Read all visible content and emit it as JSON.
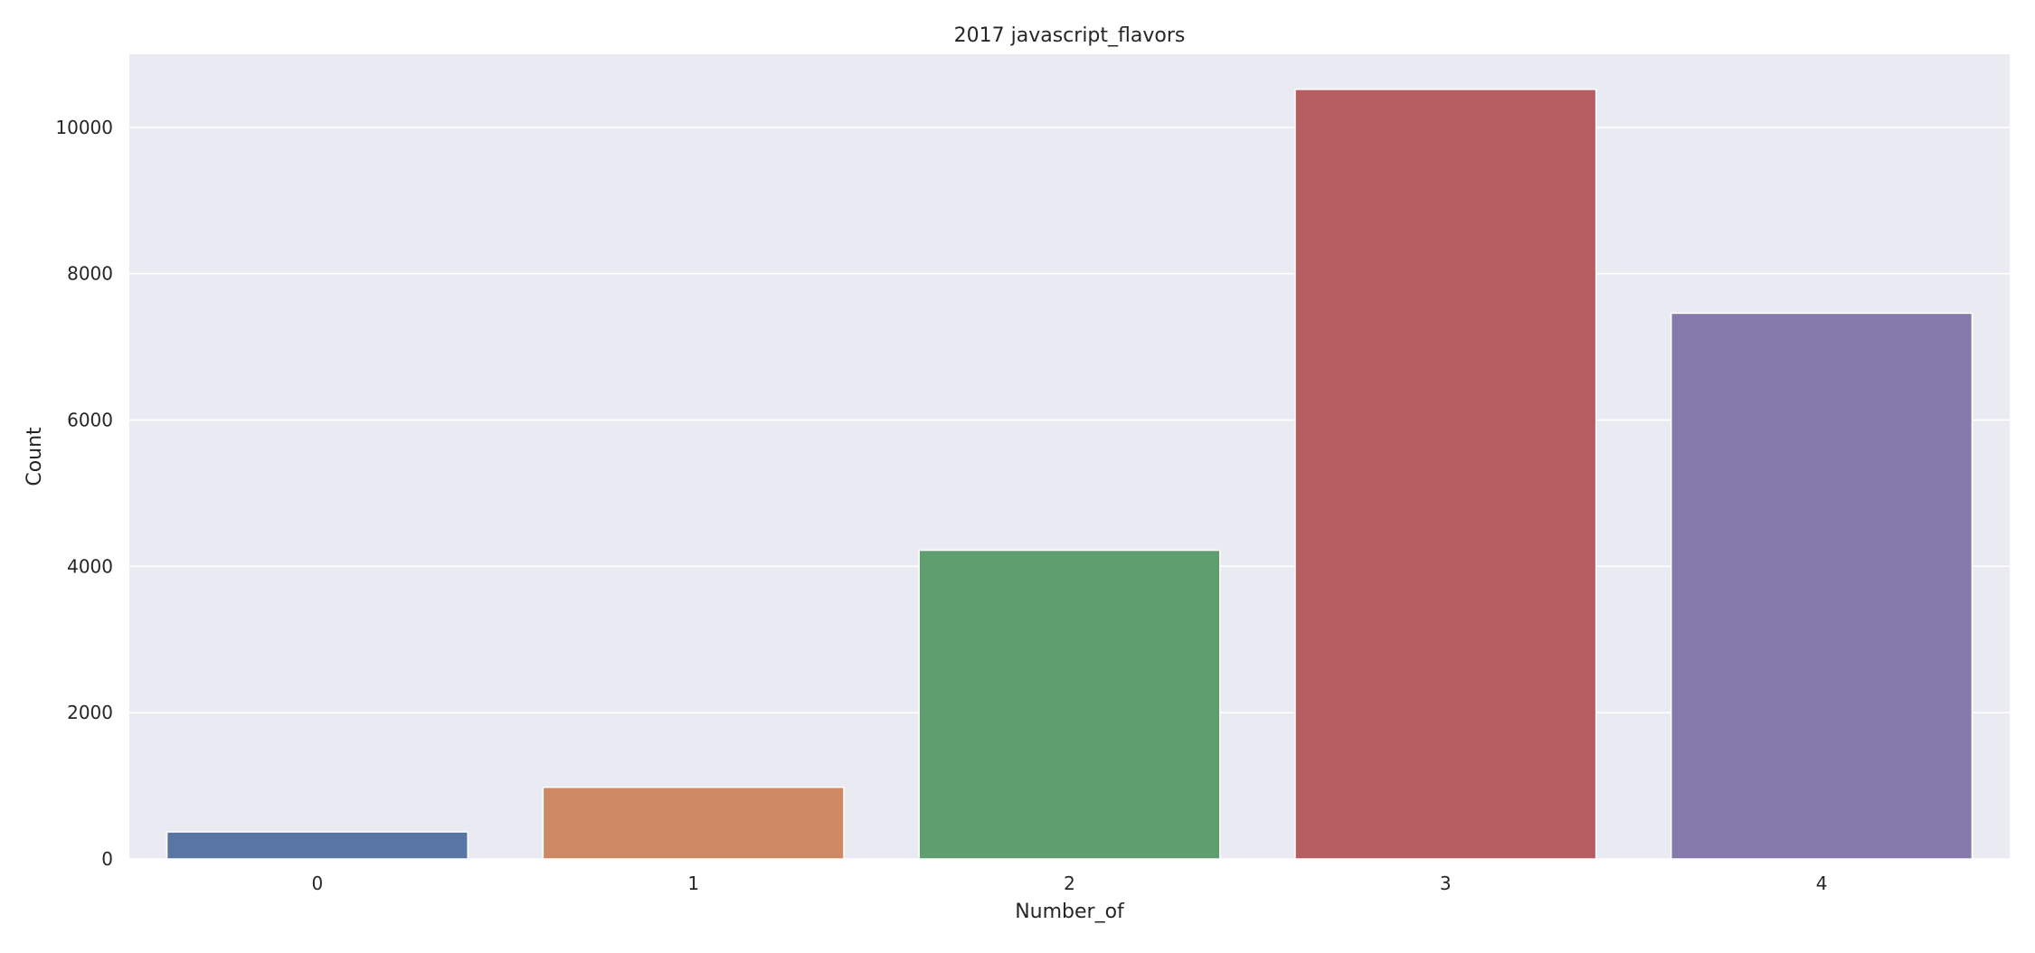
{
  "chart_data": {
    "type": "bar",
    "title": "2017 javascript_flavors",
    "xlabel": "Number_of",
    "ylabel": "Count",
    "categories": [
      "0",
      "1",
      "2",
      "3",
      "4"
    ],
    "values": [
      370,
      980,
      4220,
      10520,
      7460
    ],
    "ylim": [
      0,
      11000
    ],
    "yticks": [
      0,
      2000,
      4000,
      6000,
      8000,
      10000
    ],
    "grid": true,
    "colors": {
      "bars": [
        "#5975a4",
        "#cc8963",
        "#5f9e6e",
        "#b55d60",
        "#857aab"
      ],
      "plot_background": "#eaeaf2",
      "grid": "#ffffff"
    }
  }
}
